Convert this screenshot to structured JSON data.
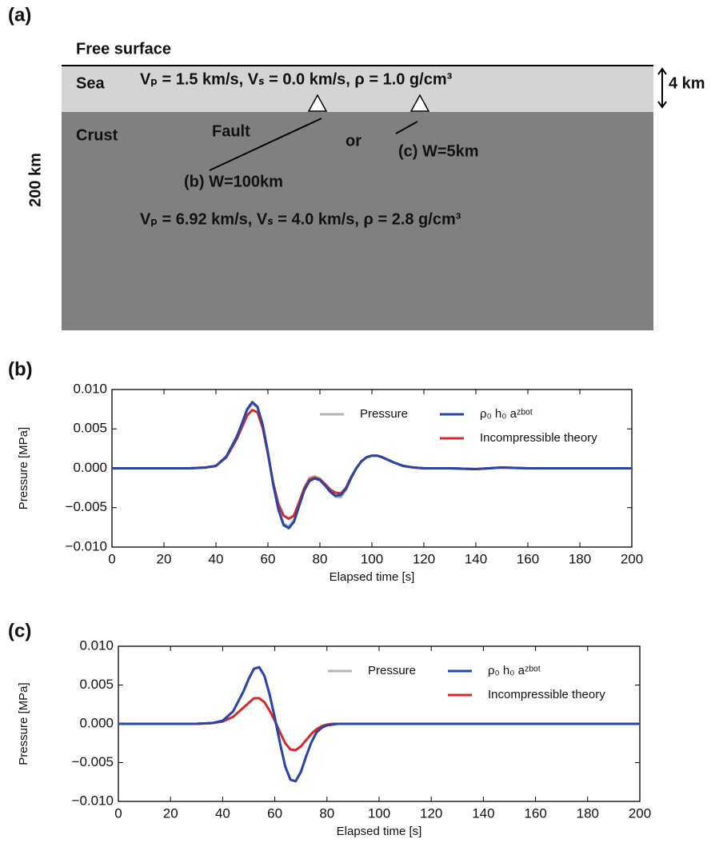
{
  "diagram": {
    "panel_label": "(a)",
    "free_surface": "Free surface",
    "sea": "Sea",
    "sea_params": "Vₚ = 1.5 km/s, Vₛ = 0.0 km/s, ρ = 1.0 g/cm³",
    "sea_depth": "4 km",
    "crust": "Crust",
    "fault": "Fault",
    "or": "or",
    "fault_b": "(b) W=100km",
    "fault_c": "(c) W=5km",
    "model_depth": "200 km",
    "crust_params": "Vₚ = 6.92 km/s, Vₛ = 4.0 km/s, ρ = 2.8 g/cm³"
  },
  "chart_data": [
    {
      "type": "line",
      "panel_label": "(b)",
      "xlabel": "Elapsed time [s]",
      "ylabel": "Pressure [MPa]",
      "xlim": [
        0,
        200
      ],
      "xticks": [
        0,
        20,
        40,
        60,
        80,
        100,
        120,
        140,
        160,
        180,
        200
      ],
      "ylim": [
        -0.01,
        0.01
      ],
      "yticks": [
        {
          "value": -0.01,
          "label": "−0.010"
        },
        {
          "value": -0.005,
          "label": "−0.005"
        },
        {
          "value": 0,
          "label": "0.000"
        },
        0.005,
        {
          "value": 0.01,
          "label": "0.010"
        }
      ],
      "legend": "upper right",
      "x": [
        0,
        10,
        20,
        30,
        36,
        40,
        44,
        48,
        50,
        52,
        54,
        56,
        58,
        60,
        62,
        64,
        66,
        68,
        70,
        72,
        74,
        76,
        78,
        80,
        82,
        84,
        86,
        88,
        90,
        92,
        94,
        96,
        98,
        100,
        102,
        104,
        108,
        112,
        116,
        120,
        130,
        140,
        150,
        160,
        170,
        180,
        190,
        200
      ],
      "series": [
        {
          "name": "Pressure",
          "color": "#b4b4b4",
          "values": [
            0,
            0,
            0,
            0,
            0.0001,
            0.0003,
            0.0015,
            0.0039,
            0.0056,
            0.0073,
            0.0082,
            0.0077,
            0.0055,
            0.002,
            -0.002,
            -0.0051,
            -0.007,
            -0.0074,
            -0.0066,
            -0.0046,
            -0.0025,
            -0.0012,
            -0.001,
            -0.0013,
            -0.0021,
            -0.003,
            -0.0036,
            -0.0037,
            -0.0028,
            -0.0013,
            0,
            0.0009,
            0.0014,
            0.0016,
            0.0016,
            0.0014,
            0.0008,
            0.0003,
            0.0001,
            0,
            0,
            -0.0001,
            0.0001,
            0,
            0,
            0,
            0,
            0
          ]
        },
        {
          "name": "ρ₀ h₀ aᶻᵇᵒᵗ",
          "color": "#2a45a8",
          "values": [
            0,
            0,
            0,
            0,
            0.0001,
            0.0003,
            0.0015,
            0.004,
            0.0057,
            0.0075,
            0.0084,
            0.0078,
            0.0055,
            0.002,
            -0.002,
            -0.0052,
            -0.0072,
            -0.0076,
            -0.0068,
            -0.0048,
            -0.0028,
            -0.0016,
            -0.0013,
            -0.0015,
            -0.0022,
            -0.003,
            -0.0035,
            -0.0034,
            -0.0026,
            -0.0012,
            0,
            0.0009,
            0.0014,
            0.0016,
            0.0016,
            0.0014,
            0.0008,
            0.0003,
            0.0001,
            0,
            0,
            -0.0001,
            0.0001,
            0,
            0,
            0,
            0,
            0
          ]
        },
        {
          "name": "Incompressible theory",
          "color": "#d42a2a",
          "values": [
            0,
            0,
            0,
            0,
            0.0001,
            0.0003,
            0.0014,
            0.0037,
            0.0052,
            0.0067,
            0.0074,
            0.0071,
            0.0051,
            0.0018,
            -0.0018,
            -0.0045,
            -0.006,
            -0.0064,
            -0.006,
            -0.0043,
            -0.0025,
            -0.0014,
            -0.0012,
            -0.0014,
            -0.002,
            -0.0027,
            -0.0031,
            -0.0032,
            -0.0025,
            -0.0011,
            0,
            0.0009,
            0.0014,
            0.0016,
            0.0016,
            0.0014,
            0.0008,
            0.0003,
            0.0001,
            0,
            0,
            -0.0001,
            0.0001,
            0,
            0,
            0,
            0,
            0
          ]
        }
      ]
    },
    {
      "type": "line",
      "panel_label": "(c)",
      "xlabel": "Elapsed time [s]",
      "ylabel": "Pressure [MPa]",
      "xlim": [
        0,
        200
      ],
      "xticks": [
        0,
        20,
        40,
        60,
        80,
        100,
        120,
        140,
        160,
        180,
        200
      ],
      "ylim": [
        -0.01,
        0.01
      ],
      "yticks": [
        {
          "value": -0.01,
          "label": "−0.010"
        },
        {
          "value": -0.005,
          "label": "−0.005"
        },
        {
          "value": 0,
          "label": "0.000"
        },
        0.005,
        {
          "value": 0.01,
          "label": "0.010"
        }
      ],
      "legend": "upper right",
      "x": [
        0,
        10,
        20,
        30,
        36,
        40,
        44,
        48,
        50,
        52,
        54,
        56,
        58,
        60,
        62,
        64,
        66,
        68,
        70,
        72,
        74,
        76,
        78,
        80,
        82,
        84,
        86,
        88,
        90,
        92,
        94,
        96,
        98,
        100,
        102,
        104,
        108,
        112,
        116,
        120,
        130,
        140,
        150,
        160,
        170,
        180,
        190,
        200
      ],
      "series": [
        {
          "name": "Pressure",
          "color": "#b4b4b4",
          "values": [
            0,
            0,
            0,
            0,
            0.0001,
            0.0004,
            0.0016,
            0.0042,
            0.0058,
            0.0071,
            0.0073,
            0.0062,
            0.0038,
            0.0008,
            -0.0025,
            -0.0055,
            -0.0072,
            -0.0074,
            -0.0062,
            -0.0042,
            -0.0024,
            -0.0011,
            -0.0005,
            -0.0002,
            -0.0001,
            0,
            0,
            0,
            0,
            0,
            0,
            0,
            0,
            0,
            0,
            0,
            0,
            0,
            0,
            0,
            0,
            0,
            0,
            0,
            0,
            0,
            0,
            0
          ]
        },
        {
          "name": "ρ₀ h₀ aᶻᵇᵒᵗ",
          "color": "#2a45a8",
          "values": [
            0,
            0,
            0,
            0,
            0.0001,
            0.0004,
            0.0016,
            0.0042,
            0.0058,
            0.0071,
            0.0073,
            0.0062,
            0.0038,
            0.0008,
            -0.0025,
            -0.0055,
            -0.0072,
            -0.0074,
            -0.0062,
            -0.0042,
            -0.0024,
            -0.0011,
            -0.0005,
            -0.0002,
            -0.0001,
            0,
            0,
            0,
            0,
            0,
            0,
            0,
            0,
            0,
            0,
            0,
            0,
            0,
            0,
            0,
            0,
            0,
            0,
            0,
            0,
            0,
            0,
            0
          ]
        },
        {
          "name": "Incompressible theory",
          "color": "#d42a2a",
          "values": [
            0,
            0,
            0,
            0,
            0.0001,
            0.0003,
            0.0009,
            0.0021,
            0.0027,
            0.0033,
            0.0033,
            0.0028,
            0.0017,
            0.0004,
            -0.0011,
            -0.0025,
            -0.0033,
            -0.0034,
            -0.0029,
            -0.0021,
            -0.0013,
            -0.0007,
            -0.0003,
            -0.0001,
            0,
            0,
            0,
            0,
            0,
            0,
            0,
            0,
            0,
            0,
            0,
            0,
            0,
            0,
            0,
            0,
            0,
            0,
            0,
            0,
            0,
            0,
            0,
            0
          ]
        }
      ]
    }
  ]
}
